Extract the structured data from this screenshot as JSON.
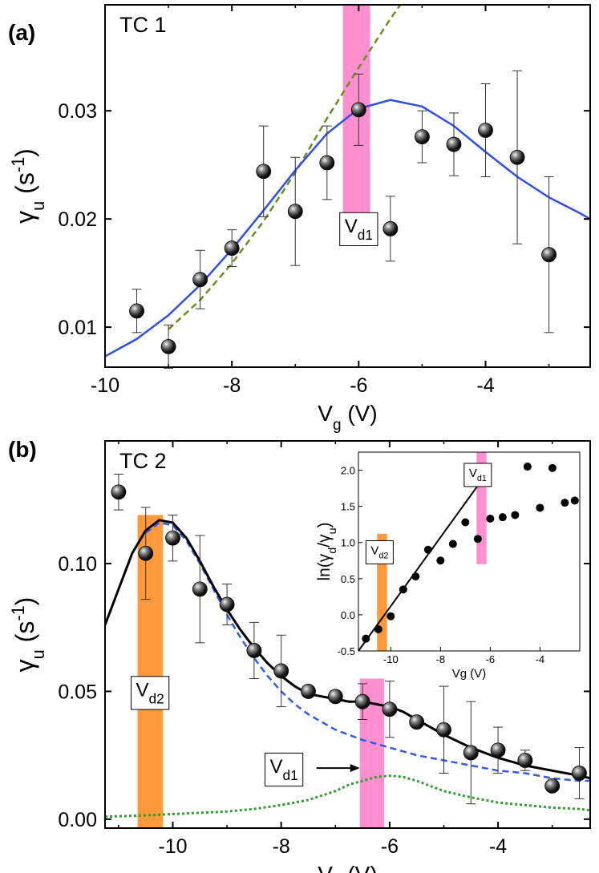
{
  "chart_data": [
    {
      "panel_label": "(a)",
      "type": "scatter",
      "title": "TC 1",
      "xlabel": {
        "main": "V",
        "sub": "g",
        "unit": " (V)"
      },
      "ylabel": {
        "main": "γ",
        "sub": "u",
        "unit_open": " (s",
        "sup": "-1",
        "unit_close": ")"
      },
      "xlim": [
        -10.0,
        -2.35
      ],
      "ylim": [
        0.0063,
        0.0398
      ],
      "xticks": [
        -10,
        -8,
        -6,
        -4
      ],
      "xtick_labels": [
        "-10",
        "-8",
        "-6",
        "-4"
      ],
      "yticks": [
        0.01,
        0.02,
        0.03
      ],
      "ytick_labels": [
        "0.01",
        "0.02",
        "0.03"
      ],
      "points": [
        {
          "x": -9.5,
          "y": 0.0115,
          "err": 0.002
        },
        {
          "x": -9.0,
          "y": 0.0082,
          "err": 0.002
        },
        {
          "x": -8.5,
          "y": 0.0144,
          "err": 0.0027
        },
        {
          "x": -8.0,
          "y": 0.0173,
          "err": 0.0017
        },
        {
          "x": -7.5,
          "y": 0.0244,
          "err": 0.0042
        },
        {
          "x": -7.0,
          "y": 0.0207,
          "err": 0.005
        },
        {
          "x": -6.5,
          "y": 0.0252,
          "err": 0.0034
        },
        {
          "x": -6.0,
          "y": 0.0301,
          "err": 0.0033
        },
        {
          "x": -5.5,
          "y": 0.0191,
          "err": 0.003
        },
        {
          "x": -5.0,
          "y": 0.0276,
          "err": 0.0024
        },
        {
          "x": -4.5,
          "y": 0.0269,
          "err": 0.0029
        },
        {
          "x": -4.0,
          "y": 0.0282,
          "err": 0.0043
        },
        {
          "x": -3.5,
          "y": 0.0257,
          "err": 0.008
        },
        {
          "x": -3.0,
          "y": 0.0167,
          "err": 0.0072
        }
      ],
      "fit_solid": {
        "color": "#2f4fe0",
        "x": [
          -10.0,
          -9.5,
          -9.0,
          -8.5,
          -8.0,
          -7.5,
          -7.0,
          -6.5,
          -6.0,
          -5.5,
          -5.0,
          -4.5,
          -4.0,
          -3.5,
          -3.0,
          -2.5,
          -2.35
        ],
        "y": [
          0.0073,
          0.0089,
          0.0111,
          0.0139,
          0.0172,
          0.0208,
          0.0245,
          0.0279,
          0.0302,
          0.031,
          0.0304,
          0.0286,
          0.0262,
          0.0239,
          0.022,
          0.0205,
          0.02
        ]
      },
      "fit_dashed": {
        "color": "#6b8e23",
        "x": [
          -9.0,
          -8.5,
          -8.0,
          -7.5,
          -7.0,
          -6.5,
          -6.0,
          -5.5,
          -5.2
        ],
        "y": [
          0.0098,
          0.0125,
          0.0159,
          0.0198,
          0.0243,
          0.0293,
          0.034,
          0.0385,
          0.041
        ]
      },
      "bands": [
        {
          "label_main": "V",
          "label_sub": "d1",
          "x0": -6.25,
          "x1": -5.82,
          "y0": 0.0175,
          "y1": 0.0398,
          "color": "#ff8fcf",
          "label_x": -6.0,
          "label_y": 0.0192
        }
      ]
    },
    {
      "panel_label": "(b)",
      "type": "scatter",
      "title": "TC 2",
      "xlabel": {
        "main": "V",
        "sub": "g",
        "unit": " (V)"
      },
      "ylabel": {
        "main": "γ",
        "sub": "u",
        "unit_open": " (s",
        "sup": "-1",
        "unit_close": ")"
      },
      "xlim": [
        -11.25,
        -2.3
      ],
      "ylim": [
        -0.0035,
        0.148
      ],
      "xticks": [
        -10,
        -8,
        -6,
        -4
      ],
      "xtick_labels": [
        "-10",
        "-8",
        "-6",
        "-4"
      ],
      "yticks": [
        0.0,
        0.05,
        0.1
      ],
      "ytick_labels": [
        "0.00",
        "0.05",
        "0.10"
      ],
      "points": [
        {
          "x": -11.0,
          "y": 0.128,
          "err": 0.007
        },
        {
          "x": -10.5,
          "y": 0.104,
          "err": 0.018
        },
        {
          "x": -10.0,
          "y": 0.11,
          "err": 0.009
        },
        {
          "x": -9.5,
          "y": 0.09,
          "err": 0.021
        },
        {
          "x": -9.0,
          "y": 0.084,
          "err": 0.008
        },
        {
          "x": -8.5,
          "y": 0.066,
          "err": 0.011
        },
        {
          "x": -8.0,
          "y": 0.058,
          "err": 0.014
        },
        {
          "x": -7.5,
          "y": 0.05,
          "err": 0.001
        },
        {
          "x": -7.0,
          "y": 0.048,
          "err": 0.002
        },
        {
          "x": -6.5,
          "y": 0.046,
          "err": 0.007
        },
        {
          "x": -6.0,
          "y": 0.043,
          "err": 0.011
        },
        {
          "x": -5.5,
          "y": 0.038,
          "err": 0.002
        },
        {
          "x": -5.0,
          "y": 0.035,
          "err": 0.017
        },
        {
          "x": -4.5,
          "y": 0.026,
          "err": 0.02
        },
        {
          "x": -4.0,
          "y": 0.027,
          "err": 0.009
        },
        {
          "x": -3.5,
          "y": 0.023,
          "err": 0.004
        },
        {
          "x": -3.0,
          "y": 0.013,
          "err": 0.001
        },
        {
          "x": -2.5,
          "y": 0.018,
          "err": 0.01
        }
      ],
      "fit_solid": {
        "color": "#000000",
        "x": [
          -11.25,
          -11.0,
          -10.75,
          -10.5,
          -10.25,
          -10.0,
          -9.75,
          -9.5,
          -9.25,
          -9.0,
          -8.75,
          -8.5,
          -8.25,
          -8.0,
          -7.75,
          -7.5,
          -7.25,
          -7.0,
          -6.75,
          -6.5,
          -6.25,
          -6.0,
          -5.75,
          -5.5,
          -5.25,
          -5.0,
          -4.5,
          -4.0,
          -3.5,
          -3.0,
          -2.5,
          -2.3
        ],
        "y": [
          0.076,
          0.09,
          0.104,
          0.113,
          0.117,
          0.116,
          0.11,
          0.101,
          0.091,
          0.082,
          0.074,
          0.067,
          0.061,
          0.056,
          0.052,
          0.049,
          0.048,
          0.047,
          0.046,
          0.046,
          0.045,
          0.044,
          0.042,
          0.039,
          0.036,
          0.033,
          0.028,
          0.024,
          0.021,
          0.019,
          0.017,
          0.016
        ]
      },
      "fit_dashed": {
        "color": "#2f5be8",
        "x": [
          -10.5,
          -10.25,
          -10.0,
          -9.75,
          -9.5,
          -9.25,
          -9.0,
          -8.75,
          -8.5,
          -8.25,
          -8.0,
          -7.75,
          -7.5,
          -7.0,
          -6.5,
          -6.0,
          -5.5,
          -5.0,
          -4.5,
          -4.0,
          -3.5,
          -3.0,
          -2.5,
          -2.3
        ],
        "y": [
          0.112,
          0.116,
          0.115,
          0.109,
          0.1,
          0.09,
          0.08,
          0.071,
          0.063,
          0.056,
          0.05,
          0.045,
          0.041,
          0.035,
          0.031,
          0.028,
          0.025,
          0.023,
          0.021,
          0.019,
          0.018,
          0.016,
          0.015,
          0.015
        ]
      },
      "fit_dotted": {
        "color": "#2ea02e",
        "x": [
          -11.25,
          -10.5,
          -10.0,
          -9.5,
          -9.0,
          -8.5,
          -8.0,
          -7.5,
          -7.0,
          -6.75,
          -6.5,
          -6.25,
          -6.0,
          -5.75,
          -5.5,
          -5.25,
          -5.0,
          -4.5,
          -4.0,
          -3.5,
          -3.0,
          -2.5,
          -2.3
        ],
        "y": [
          0.001,
          0.0015,
          0.002,
          0.0025,
          0.003,
          0.004,
          0.0055,
          0.0075,
          0.011,
          0.0135,
          0.015,
          0.0165,
          0.017,
          0.0165,
          0.015,
          0.013,
          0.011,
          0.0085,
          0.0065,
          0.0055,
          0.0045,
          0.004,
          0.0035
        ]
      },
      "bands": [
        {
          "label_main": "V",
          "label_sub": "d2",
          "x0": -10.65,
          "x1": -10.18,
          "y0": -0.0035,
          "y1": 0.119,
          "color": "#ff9a3c",
          "label_x": -10.42,
          "label_y": 0.05
        },
        {
          "label_main": "V",
          "label_sub": "d1",
          "x0": -6.55,
          "x1": -6.1,
          "y0": -0.0035,
          "y1": 0.055,
          "color": "#ff8fcf",
          "label_x": -7.95,
          "label_y": 0.02
        }
      ],
      "annotation_arrow": {
        "from_x": -7.35,
        "from_y": 0.02,
        "to_x": -6.55,
        "to_y": 0.02
      },
      "inset": {
        "type": "scatter",
        "xlabel": "Vg (V)",
        "ylabel": {
          "main": "ln(γ",
          "sub1": "d",
          "mid": "/γ",
          "sub2": "u",
          "close": ")"
        },
        "xlim": [
          -11.3,
          -2.4
        ],
        "ylim": [
          -0.5,
          2.25
        ],
        "xticks": [
          -10,
          -8,
          -6,
          -4
        ],
        "xtick_labels": [
          "-10",
          "-8",
          "-6",
          "-4"
        ],
        "yticks": [
          -0.5,
          0.0,
          0.5,
          1.0,
          1.5,
          2.0
        ],
        "ytick_labels": [
          "-0.5",
          "0.0",
          "0.5",
          "1.0",
          "1.5",
          "2.0"
        ],
        "points": [
          {
            "x": -11.0,
            "y": -0.33
          },
          {
            "x": -10.5,
            "y": -0.2
          },
          {
            "x": -10.0,
            "y": -0.02
          },
          {
            "x": -9.5,
            "y": 0.35
          },
          {
            "x": -9.0,
            "y": 0.53
          },
          {
            "x": -8.5,
            "y": 0.9
          },
          {
            "x": -8.0,
            "y": 0.75
          },
          {
            "x": -7.5,
            "y": 0.98
          },
          {
            "x": -7.0,
            "y": 1.28
          },
          {
            "x": -6.5,
            "y": 1.05
          },
          {
            "x": -6.0,
            "y": 1.33
          },
          {
            "x": -5.5,
            "y": 1.35
          },
          {
            "x": -5.0,
            "y": 1.38
          },
          {
            "x": -4.5,
            "y": 2.05
          },
          {
            "x": -4.0,
            "y": 1.48
          },
          {
            "x": -3.5,
            "y": 2.03
          },
          {
            "x": -3.0,
            "y": 1.55
          },
          {
            "x": -2.6,
            "y": 1.58
          }
        ],
        "fit_line": {
          "x0": -11.3,
          "y0": -0.5,
          "x1": -6.2,
          "y1": 1.93
        },
        "bands": [
          {
            "label_main": "V",
            "label_sub": "d2",
            "x0": -10.55,
            "x1": -10.15,
            "y0": -0.5,
            "y1": 1.12,
            "color": "#ff9a3c",
            "label_x": -10.45,
            "label_y": 0.88
          },
          {
            "label_main": "V",
            "label_sub": "d1",
            "x0": -6.55,
            "x1": -6.15,
            "y0": 0.7,
            "y1": 2.25,
            "color": "#ff8fcf",
            "label_x": -6.5,
            "label_y": 1.95
          }
        ]
      }
    }
  ]
}
